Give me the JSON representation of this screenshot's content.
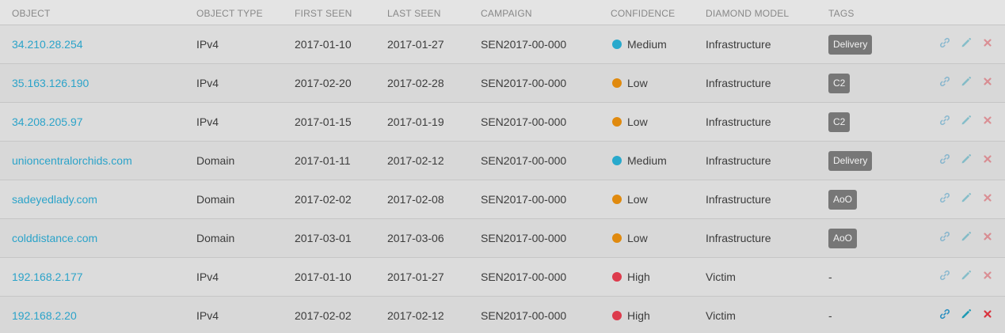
{
  "columns": {
    "object": "OBJECT",
    "object_type": "OBJECT TYPE",
    "first_seen": "FIRST SEEN",
    "last_seen": "LAST SEEN",
    "campaign": "CAMPAIGN",
    "confidence": "CONFIDENCE",
    "diamond_model": "DIAMOND MODEL",
    "tags": "TAGS"
  },
  "colors": {
    "link": "#2ba3c9",
    "medium": "#28a9cc",
    "low": "#e08a0e",
    "high": "#dd3b4c",
    "tag_bg": "#777777",
    "action_link": "#2a8fc0",
    "action_edit": "#1f9ab3",
    "action_delete": "#d9343e"
  },
  "icons": {
    "link_action": "link-icon",
    "edit_action": "pencil-icon",
    "delete_action": "close-icon"
  },
  "rows": [
    {
      "object": "34.210.28.254",
      "type": "IPv4",
      "first_seen": "2017-01-10",
      "last_seen": "2017-01-27",
      "campaign": "SEN2017-00-000",
      "confidence": "Medium",
      "diamond": "Infrastructure",
      "tag": "Delivery",
      "active": false
    },
    {
      "object": "35.163.126.190",
      "type": "IPv4",
      "first_seen": "2017-02-20",
      "last_seen": "2017-02-28",
      "campaign": "SEN2017-00-000",
      "confidence": "Low",
      "diamond": "Infrastructure",
      "tag": "C2",
      "active": false
    },
    {
      "object": "34.208.205.97",
      "type": "IPv4",
      "first_seen": "2017-01-15",
      "last_seen": "2017-01-19",
      "campaign": "SEN2017-00-000",
      "confidence": "Low",
      "diamond": "Infrastructure",
      "tag": "C2",
      "active": false
    },
    {
      "object": "unioncentralorchids.com",
      "type": "Domain",
      "first_seen": "2017-01-11",
      "last_seen": "2017-02-12",
      "campaign": "SEN2017-00-000",
      "confidence": "Medium",
      "diamond": "Infrastructure",
      "tag": "Delivery",
      "active": false
    },
    {
      "object": "sadeyedlady.com",
      "type": "Domain",
      "first_seen": "2017-02-02",
      "last_seen": "2017-02-08",
      "campaign": "SEN2017-00-000",
      "confidence": "Low",
      "diamond": "Infrastructure",
      "tag": "AoO",
      "active": false
    },
    {
      "object": "colddistance.com",
      "type": "Domain",
      "first_seen": "2017-03-01",
      "last_seen": "2017-03-06",
      "campaign": "SEN2017-00-000",
      "confidence": "Low",
      "diamond": "Infrastructure",
      "tag": "AoO",
      "active": false
    },
    {
      "object": "192.168.2.177",
      "type": "IPv4",
      "first_seen": "2017-01-10",
      "last_seen": "2017-01-27",
      "campaign": "SEN2017-00-000",
      "confidence": "High",
      "diamond": "Victim",
      "tag": "-",
      "active": false
    },
    {
      "object": "192.168.2.20",
      "type": "IPv4",
      "first_seen": "2017-02-02",
      "last_seen": "2017-02-12",
      "campaign": "SEN2017-00-000",
      "confidence": "High",
      "diamond": "Victim",
      "tag": "-",
      "active": true
    }
  ]
}
